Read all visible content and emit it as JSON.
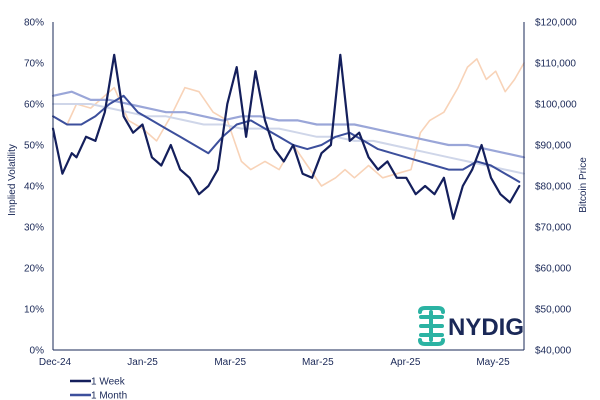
{
  "chart_data": {
    "type": "line",
    "x_labels": [
      "Dec-24",
      "Jan-25",
      "Mar-25",
      "Mar-25",
      "Apr-25",
      "May-25"
    ],
    "left_axis": {
      "label": "Implied Volatility",
      "ylim": [
        0,
        80
      ],
      "ticks": [
        0,
        10,
        20,
        30,
        40,
        50,
        60,
        70,
        80
      ],
      "tick_labels": [
        "0%",
        "10%",
        "20%",
        "30%",
        "40%",
        "50%",
        "60%",
        "70%",
        "80%"
      ]
    },
    "right_axis": {
      "label": "Bitcoin Price",
      "ylim": [
        40000,
        120000
      ],
      "ticks": [
        40000,
        50000,
        60000,
        70000,
        80000,
        90000,
        100000,
        110000,
        120000
      ],
      "tick_labels": [
        "$40,000",
        "$50,000",
        "$60,000",
        "$70,000",
        "$80,000",
        "$90,000",
        "$100,000",
        "$110,000",
        "$120,000"
      ]
    },
    "x_range": [
      0,
      100
    ],
    "series": [
      {
        "name": "1 Week",
        "axis": "left",
        "color": "#141f5c",
        "x": [
          0,
          2,
          4,
          5,
          7,
          9,
          11,
          13,
          15,
          17,
          19,
          21,
          23,
          25,
          27,
          29,
          31,
          33,
          35,
          37,
          39,
          41,
          43,
          45,
          47,
          49,
          51,
          53,
          55,
          57,
          59,
          61,
          63,
          65,
          67,
          69,
          71,
          73,
          75,
          77,
          79,
          81,
          83,
          85,
          87,
          89,
          91,
          93,
          95,
          97,
          99
        ],
        "values": [
          54,
          43,
          48,
          47,
          52,
          51,
          58,
          72,
          57,
          53,
          55,
          47,
          45,
          50,
          44,
          42,
          38,
          40,
          44,
          60,
          69,
          52,
          68,
          56,
          49,
          46,
          50,
          43,
          42,
          48,
          50,
          72,
          51,
          53,
          47,
          44,
          46,
          42,
          42,
          38,
          40,
          38,
          42,
          32,
          40,
          44,
          50,
          42,
          38,
          36,
          40
        ]
      },
      {
        "name": "1 Month",
        "axis": "left",
        "color": "#3c4f9c",
        "x": [
          0,
          3,
          6,
          9,
          12,
          15,
          18,
          21,
          24,
          27,
          30,
          33,
          36,
          39,
          42,
          45,
          48,
          51,
          54,
          57,
          60,
          63,
          66,
          69,
          72,
          75,
          78,
          81,
          84,
          87,
          90,
          93,
          96,
          99
        ],
        "values": [
          57,
          55,
          55,
          57,
          60,
          62,
          58,
          56,
          54,
          52,
          50,
          48,
          52,
          55,
          56,
          54,
          52,
          50,
          49,
          50,
          52,
          53,
          51,
          49,
          48,
          47,
          46,
          45,
          44,
          44,
          46,
          45,
          43,
          41
        ]
      },
      {
        "axis": "left",
        "color": "#9aa6d8",
        "x": [
          0,
          4,
          8,
          12,
          16,
          20,
          24,
          28,
          32,
          36,
          40,
          44,
          48,
          52,
          56,
          60,
          64,
          68,
          72,
          76,
          80,
          84,
          88,
          92,
          96,
          100
        ],
        "values": [
          62,
          63,
          61,
          61,
          60,
          59,
          58,
          58,
          57,
          56,
          57,
          57,
          56,
          56,
          55,
          55,
          55,
          54,
          53,
          52,
          51,
          50,
          50,
          49,
          48,
          47
        ]
      },
      {
        "axis": "left",
        "color": "#cfd6e9",
        "x": [
          0,
          4,
          8,
          12,
          16,
          20,
          24,
          28,
          32,
          36,
          40,
          44,
          48,
          52,
          56,
          60,
          64,
          68,
          72,
          76,
          80,
          84,
          88,
          92,
          96,
          100
        ],
        "values": [
          60,
          60,
          60,
          59,
          58,
          57,
          57,
          56,
          55,
          55,
          54,
          54,
          54,
          53,
          52,
          52,
          51,
          51,
          50,
          49,
          48,
          47,
          46,
          45,
          44,
          43
        ]
      },
      {
        "name": "Bitcoin Price",
        "axis": "right",
        "color": "#f8d3b8",
        "x": [
          0,
          3,
          5,
          8,
          11,
          13,
          16,
          19,
          22,
          25,
          28,
          31,
          34,
          37,
          40,
          42,
          45,
          48,
          51,
          54,
          57,
          60,
          62,
          64,
          67,
          70,
          73,
          76,
          78,
          80,
          83,
          86,
          88,
          90,
          92,
          94,
          96,
          98,
          100
        ],
        "values": [
          97000,
          95000,
          100000,
          99000,
          102000,
          104000,
          96000,
          94000,
          91000,
          97000,
          104000,
          103000,
          98000,
          96000,
          86000,
          84000,
          86000,
          84000,
          90000,
          85000,
          80000,
          82000,
          84000,
          82000,
          85000,
          82000,
          83000,
          84000,
          93000,
          96000,
          98000,
          104000,
          109000,
          111000,
          106000,
          108000,
          103000,
          106000,
          110000
        ]
      }
    ],
    "legend": [
      "1 Week",
      "1 Month"
    ],
    "grid": false,
    "legend_position": "bottom-left"
  },
  "logo": {
    "text": "NYDIG",
    "icon": "nydig-logo-icon",
    "color": "#2bb3a3"
  },
  "colors": {
    "axis": "#1a2857"
  }
}
